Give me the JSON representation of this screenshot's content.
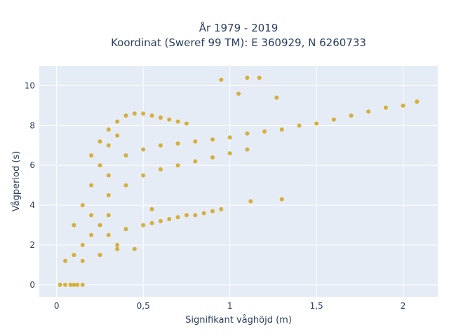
{
  "chart_data": {
    "type": "scatter",
    "title_lines": [
      "År 1979 - 2019",
      "Koordinat (Sweref 99 TM): E 360929, N 6260733"
    ],
    "xlabel": "Signifikant våghöjd (m)",
    "ylabel": "Vågperiod (s)",
    "xlim": [
      -0.1,
      2.2
    ],
    "ylim": [
      -0.6,
      11.0
    ],
    "x_ticks": [
      0,
      0.5,
      1,
      1.5,
      2
    ],
    "x_tick_labels": [
      "0",
      "0,5",
      "1",
      "1,5",
      "2"
    ],
    "y_ticks": [
      0,
      2,
      4,
      6,
      8,
      10
    ],
    "y_tick_labels": [
      "0",
      "2",
      "4",
      "6",
      "8",
      "10"
    ],
    "grid": true,
    "legend": "none",
    "marker_color": "#D4A419",
    "plot_bg": "#E5ECF6",
    "series": [
      {
        "values_xy": [
          [
            0.02,
            0.0
          ],
          [
            0.05,
            0.0
          ],
          [
            0.08,
            0.0
          ],
          [
            0.1,
            0.0
          ],
          [
            0.12,
            0.0
          ],
          [
            0.15,
            0.0
          ],
          [
            0.05,
            1.2
          ],
          [
            0.1,
            1.5
          ],
          [
            0.15,
            2.0
          ],
          [
            0.2,
            2.5
          ],
          [
            0.25,
            3.0
          ],
          [
            0.3,
            3.5
          ],
          [
            0.1,
            3.0
          ],
          [
            0.15,
            4.0
          ],
          [
            0.2,
            5.0
          ],
          [
            0.25,
            6.0
          ],
          [
            0.3,
            7.0
          ],
          [
            0.35,
            7.5
          ],
          [
            0.2,
            6.5
          ],
          [
            0.25,
            7.2
          ],
          [
            0.3,
            7.8
          ],
          [
            0.35,
            8.2
          ],
          [
            0.4,
            8.5
          ],
          [
            0.45,
            8.6
          ],
          [
            0.5,
            8.6
          ],
          [
            0.55,
            8.5
          ],
          [
            0.6,
            8.4
          ],
          [
            0.65,
            8.3
          ],
          [
            0.7,
            8.2
          ],
          [
            0.75,
            8.1
          ],
          [
            0.4,
            6.5
          ],
          [
            0.5,
            6.8
          ],
          [
            0.6,
            7.0
          ],
          [
            0.7,
            7.1
          ],
          [
            0.8,
            7.2
          ],
          [
            0.9,
            7.3
          ],
          [
            1.0,
            7.4
          ],
          [
            1.1,
            7.6
          ],
          [
            1.2,
            7.7
          ],
          [
            1.3,
            7.8
          ],
          [
            1.4,
            8.0
          ],
          [
            1.5,
            8.1
          ],
          [
            1.6,
            8.3
          ],
          [
            1.7,
            8.5
          ],
          [
            1.8,
            8.7
          ],
          [
            1.9,
            8.9
          ],
          [
            2.0,
            9.0
          ],
          [
            2.08,
            9.2
          ],
          [
            0.3,
            2.5
          ],
          [
            0.4,
            2.8
          ],
          [
            0.5,
            3.0
          ],
          [
            0.6,
            3.2
          ],
          [
            0.7,
            3.4
          ],
          [
            0.8,
            3.5
          ],
          [
            0.9,
            3.7
          ],
          [
            0.95,
            3.8
          ],
          [
            0.85,
            3.6
          ],
          [
            0.75,
            3.5
          ],
          [
            0.65,
            3.3
          ],
          [
            0.55,
            3.1
          ],
          [
            0.3,
            4.5
          ],
          [
            0.4,
            5.0
          ],
          [
            0.5,
            5.5
          ],
          [
            0.6,
            5.8
          ],
          [
            0.7,
            6.0
          ],
          [
            0.8,
            6.2
          ],
          [
            0.9,
            6.4
          ],
          [
            1.0,
            6.6
          ],
          [
            1.1,
            6.8
          ],
          [
            0.95,
            10.3
          ],
          [
            1.1,
            10.4
          ],
          [
            1.05,
            9.6
          ],
          [
            1.17,
            10.4
          ],
          [
            1.27,
            9.4
          ],
          [
            1.3,
            4.3
          ],
          [
            1.12,
            4.2
          ],
          [
            0.55,
            3.8
          ],
          [
            0.35,
            2.0
          ],
          [
            0.15,
            1.2
          ],
          [
            0.25,
            1.5
          ],
          [
            0.35,
            1.8
          ],
          [
            0.45,
            1.8
          ],
          [
            0.2,
            3.5
          ],
          [
            0.3,
            5.5
          ]
        ]
      }
    ]
  }
}
